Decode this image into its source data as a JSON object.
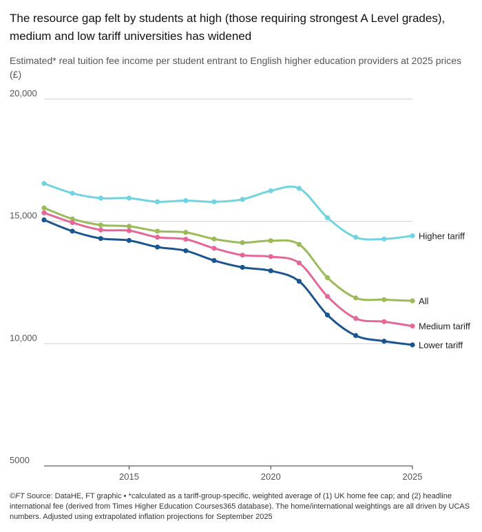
{
  "title": "The resource gap felt by students at high (those requiring strongest A Level grades), medium and low tariff universities has widened",
  "subtitle": "Estimated* real tuition fee income per student entrant to English higher education providers at 2025 prices (£)",
  "footer": {
    "copyright": "©",
    "brand": "FT",
    "text": " Source: DataHE, FT graphic • *calculated as a tariff-group-specific, weighted average of (1) UK home fee cap; and (2) headline international fee (derived from Times Higher Education Courses365 database). The home/international weightings are all driven by UCAS numbers. Adjusted using extrapolated inflation projections for September 2025"
  },
  "chart_data": {
    "type": "line",
    "x": [
      2012,
      2013,
      2014,
      2015,
      2016,
      2017,
      2018,
      2019,
      2020,
      2021,
      2022,
      2023,
      2024,
      2025
    ],
    "xticks": [
      2015,
      2020,
      2025
    ],
    "xtick_labels": [
      "2015",
      "2020",
      "2025"
    ],
    "xlim": [
      2012,
      2025
    ],
    "ylim": [
      5000,
      20000
    ],
    "yticks": [
      5000,
      10000,
      15000,
      20000
    ],
    "ytick_labels": [
      "5000",
      "10,000",
      "15,000",
      "20,000"
    ],
    "grid": true,
    "series": [
      {
        "name": "Higher tariff",
        "color": "#6fd3e0",
        "values": [
          16550,
          16150,
          15950,
          15950,
          15800,
          15850,
          15800,
          15900,
          16250,
          16350,
          15150,
          14350,
          14280,
          14410
        ]
      },
      {
        "name": "All",
        "color": "#9bbb59",
        "values": [
          15550,
          15100,
          14850,
          14800,
          14600,
          14550,
          14280,
          14130,
          14210,
          14060,
          12700,
          11870,
          11800,
          11750
        ]
      },
      {
        "name": "Medium tariff",
        "color": "#e5679a",
        "values": [
          15350,
          14950,
          14650,
          14620,
          14350,
          14270,
          13900,
          13620,
          13560,
          13300,
          11930,
          11030,
          10900,
          10720
        ]
      },
      {
        "name": "Lower tariff",
        "color": "#1a5592",
        "values": [
          15060,
          14600,
          14300,
          14220,
          13950,
          13800,
          13400,
          13120,
          12980,
          12550,
          11170,
          10330,
          10100,
          9950
        ]
      }
    ]
  }
}
